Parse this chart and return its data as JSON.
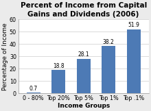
{
  "title": "Percent of Income from Capital\nGains and Dividends (2006)",
  "xlabel": "Income Groups",
  "ylabel": "Percentage of Income",
  "categories": [
    "0 - 80%",
    "Top 20%",
    "Top 5%",
    "Top 1%",
    "Top .1%"
  ],
  "values": [
    0.7,
    18.8,
    28.1,
    38.2,
    51.9
  ],
  "bar_color": "#4d7ab5",
  "ylim": [
    0,
    60
  ],
  "yticks": [
    0,
    10,
    20,
    30,
    40,
    50,
    60
  ],
  "title_fontsize": 7.5,
  "axis_label_fontsize": 6.5,
  "tick_fontsize": 5.8,
  "value_label_fontsize": 5.5,
  "background_color": "#ebebeb",
  "plot_bg_color": "#ffffff"
}
